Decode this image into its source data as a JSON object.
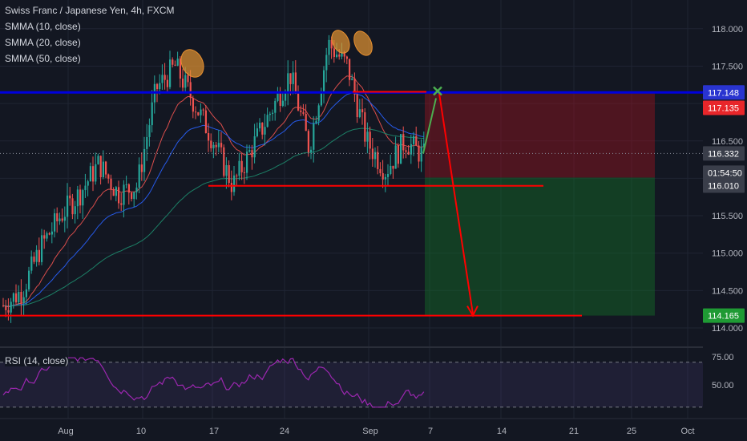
{
  "header": {
    "symbol_line": "Swiss Franc / Japanese Yen, 4h, FXCM",
    "indicators": [
      "SMMA (10, close)",
      "SMMA (20, close)",
      "SMMA (50, close)"
    ]
  },
  "rsi": {
    "label": "RSI (14, close)",
    "ticks": [
      "75.00",
      "50.00"
    ],
    "upper": 70,
    "lower": 30,
    "color": "#9c27b0"
  },
  "colors": {
    "up": "#26a69a",
    "down": "#ef5350",
    "smma10": "#ef5350",
    "smma20": "#2962ff",
    "smma50": "#1e8c6e",
    "resistance": "#0000e0",
    "annotation": "#ff0000"
  },
  "price_axis": {
    "ticks": [
      "118.000",
      "117.500",
      "116.500",
      "115.500",
      "115.000",
      "114.500",
      "114.000"
    ],
    "badges": [
      {
        "label": "117.148",
        "color": "#2934d0"
      },
      {
        "label": "117.135",
        "color": "#e8262a"
      },
      {
        "label": "116.332",
        "color": "#3a3e4a"
      },
      {
        "label": "01:54:50",
        "color": "#3a3e4a"
      },
      {
        "label": "116.010",
        "color": "#3a3e4a"
      },
      {
        "label": "114.165",
        "color": "#1f9a34"
      }
    ]
  },
  "time_axis": {
    "labels": [
      "Aug",
      "10",
      "17",
      "24",
      "Sep",
      "7",
      "14",
      "21",
      "25",
      "Oct"
    ]
  },
  "chart_data": {
    "type": "candlestick",
    "title": "Swiss Franc / Japanese Yen, 4h, FXCM",
    "ylim": [
      113.95,
      118.2
    ],
    "price_path": [
      [
        "Jul 30",
        114.3
      ],
      [
        "Aug 1",
        114.5
      ],
      [
        "Aug 3",
        115.1
      ],
      [
        "Aug 5",
        115.5
      ],
      [
        "Aug 7",
        115.8
      ],
      [
        "Aug 9",
        116.2
      ],
      [
        "Aug 11",
        115.8
      ],
      [
        "Aug 13",
        115.9
      ],
      [
        "Aug 15",
        117.2
      ],
      [
        "Aug 16",
        117.5
      ],
      [
        "Aug 18",
        117.0
      ],
      [
        "Aug 20",
        116.5
      ],
      [
        "Aug 21",
        115.9
      ],
      [
        "Aug 23",
        116.4
      ],
      [
        "Aug 25",
        116.9
      ],
      [
        "Aug 27",
        117.4
      ],
      [
        "Aug 29",
        116.4
      ],
      [
        "Aug 31",
        117.8
      ],
      [
        "Sep 2",
        117.5
      ],
      [
        "Sep 3",
        116.5
      ],
      [
        "Sep 4",
        116.1
      ],
      [
        "Sep 5",
        116.5
      ],
      [
        "Sep 6",
        116.3
      ]
    ],
    "levels": {
      "resistance": 117.148,
      "neckline": 115.9,
      "target": 114.165,
      "stop": 117.135,
      "entry": 116.01,
      "last": 116.332
    },
    "projection": [
      [
        "Sep 6",
        116.332
      ],
      [
        "Sep 7",
        117.135
      ],
      [
        "Sep 10",
        114.165
      ]
    ],
    "annotations": [
      "shoulder-left",
      "head-1",
      "head-2"
    ],
    "xlabel": "",
    "ylabel": "",
    "grid": true
  }
}
